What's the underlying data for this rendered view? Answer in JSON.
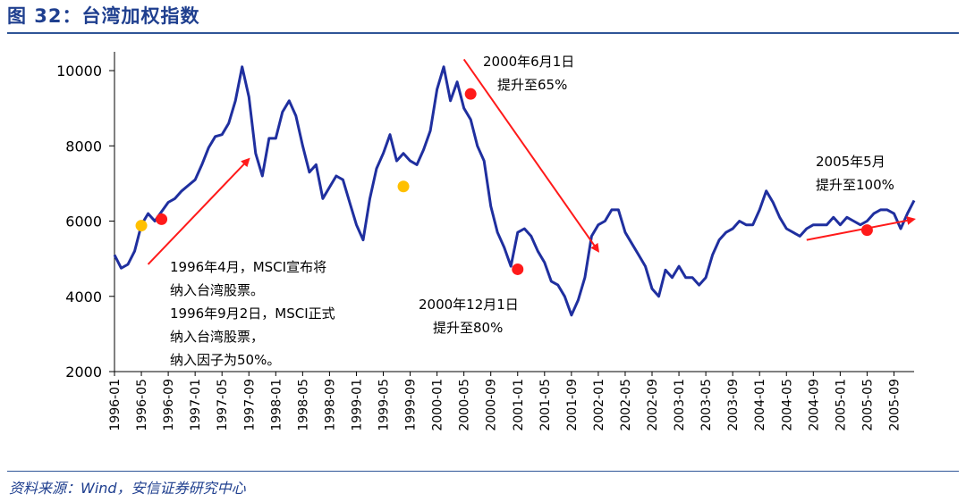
{
  "header": {
    "title": "图 32：台湾加权指数"
  },
  "footer": {
    "source": "资料来源：Wind，安信证券研究中心"
  },
  "colors": {
    "series": "#1f2f9f",
    "arrow": "#ff1a1a",
    "marker_red": "#ff1a1a",
    "marker_yellow": "#ffc000",
    "accent": "#2f5597"
  },
  "chart_data": {
    "type": "line",
    "title": "",
    "xlabel": "",
    "ylabel": "",
    "x_range": [
      "1996-01",
      "2005-12"
    ],
    "ylim": [
      2000,
      10500
    ],
    "yticks": [
      2000,
      4000,
      6000,
      8000,
      10000
    ],
    "xticks": [
      "1996-01",
      "1996-05",
      "1996-09",
      "1997-01",
      "1997-05",
      "1997-09",
      "1998-01",
      "1998-05",
      "1998-09",
      "1999-01",
      "1999-05",
      "1999-09",
      "2000-01",
      "2000-05",
      "2000-09",
      "2001-01",
      "2001-05",
      "2001-09",
      "2002-01",
      "2002-05",
      "2002-09",
      "2003-01",
      "2003-05",
      "2003-09",
      "2004-01",
      "2004-05",
      "2004-09",
      "2005-01",
      "2005-05",
      "2005-09"
    ],
    "grid": false,
    "legend": "none",
    "series": [
      {
        "points": [
          [
            "1996-01",
            5100
          ],
          [
            "1996-02",
            4750
          ],
          [
            "1996-03",
            4850
          ],
          [
            "1996-04",
            5200
          ],
          [
            "1996-05",
            5900
          ],
          [
            "1996-06",
            6200
          ],
          [
            "1996-07",
            6000
          ],
          [
            "1996-08",
            6250
          ],
          [
            "1996-09",
            6500
          ],
          [
            "1996-10",
            6600
          ],
          [
            "1996-11",
            6800
          ],
          [
            "1996-12",
            6950
          ],
          [
            "1997-01",
            7100
          ],
          [
            "1997-02",
            7500
          ],
          [
            "1997-03",
            7950
          ],
          [
            "1997-04",
            8250
          ],
          [
            "1997-05",
            8300
          ],
          [
            "1997-06",
            8600
          ],
          [
            "1997-07",
            9200
          ],
          [
            "1997-08",
            10100
          ],
          [
            "1997-09",
            9300
          ],
          [
            "1997-10",
            7800
          ],
          [
            "1997-11",
            7200
          ],
          [
            "1997-12",
            8200
          ],
          [
            "1998-01",
            8200
          ],
          [
            "1998-02",
            8900
          ],
          [
            "1998-03",
            9200
          ],
          [
            "1998-04",
            8800
          ],
          [
            "1998-05",
            8000
          ],
          [
            "1998-06",
            7300
          ],
          [
            "1998-07",
            7500
          ],
          [
            "1998-08",
            6600
          ],
          [
            "1998-09",
            6900
          ],
          [
            "1998-10",
            7200
          ],
          [
            "1998-11",
            7100
          ],
          [
            "1998-12",
            6500
          ],
          [
            "1999-01",
            5900
          ],
          [
            "1999-02",
            5500
          ],
          [
            "1999-03",
            6600
          ],
          [
            "1999-04",
            7400
          ],
          [
            "1999-05",
            7800
          ],
          [
            "1999-06",
            8300
          ],
          [
            "1999-07",
            7600
          ],
          [
            "1999-08",
            7800
          ],
          [
            "1999-09",
            7600
          ],
          [
            "1999-10",
            7500
          ],
          [
            "1999-11",
            7900
          ],
          [
            "1999-12",
            8400
          ],
          [
            "2000-01",
            9500
          ],
          [
            "2000-02",
            10100
          ],
          [
            "2000-03",
            9200
          ],
          [
            "2000-04",
            9700
          ],
          [
            "2000-05",
            9000
          ],
          [
            "2000-06",
            8700
          ],
          [
            "2000-07",
            8000
          ],
          [
            "2000-08",
            7600
          ],
          [
            "2000-09",
            6400
          ],
          [
            "2000-10",
            5700
          ],
          [
            "2000-11",
            5300
          ],
          [
            "2000-12",
            4800
          ],
          [
            "2001-01",
            5700
          ],
          [
            "2001-02",
            5800
          ],
          [
            "2001-03",
            5600
          ],
          [
            "2001-04",
            5200
          ],
          [
            "2001-05",
            4900
          ],
          [
            "2001-06",
            4400
          ],
          [
            "2001-07",
            4300
          ],
          [
            "2001-08",
            4000
          ],
          [
            "2001-09",
            3500
          ],
          [
            "2001-10",
            3900
          ],
          [
            "2001-11",
            4500
          ],
          [
            "2001-12",
            5600
          ],
          [
            "2002-01",
            5900
          ],
          [
            "2002-02",
            6000
          ],
          [
            "2002-03",
            6300
          ],
          [
            "2002-04",
            6300
          ],
          [
            "2002-05",
            5700
          ],
          [
            "2002-06",
            5400
          ],
          [
            "2002-07",
            5100
          ],
          [
            "2002-08",
            4800
          ],
          [
            "2002-09",
            4200
          ],
          [
            "2002-10",
            4000
          ],
          [
            "2002-11",
            4700
          ],
          [
            "2002-12",
            4500
          ],
          [
            "2003-01",
            4800
          ],
          [
            "2003-02",
            4500
          ],
          [
            "2003-03",
            4500
          ],
          [
            "2003-04",
            4300
          ],
          [
            "2003-05",
            4500
          ],
          [
            "2003-06",
            5100
          ],
          [
            "2003-07",
            5500
          ],
          [
            "2003-08",
            5700
          ],
          [
            "2003-09",
            5800
          ],
          [
            "2003-10",
            6000
          ],
          [
            "2003-11",
            5900
          ],
          [
            "2003-12",
            5900
          ],
          [
            "2004-01",
            6300
          ],
          [
            "2004-02",
            6800
          ],
          [
            "2004-03",
            6500
          ],
          [
            "2004-04",
            6100
          ],
          [
            "2004-05",
            5800
          ],
          [
            "2004-06",
            5700
          ],
          [
            "2004-07",
            5600
          ],
          [
            "2004-08",
            5800
          ],
          [
            "2004-09",
            5900
          ],
          [
            "2004-10",
            5900
          ],
          [
            "2004-11",
            5900
          ],
          [
            "2004-12",
            6100
          ],
          [
            "2005-01",
            5900
          ],
          [
            "2005-02",
            6100
          ],
          [
            "2005-03",
            6000
          ],
          [
            "2005-04",
            5900
          ],
          [
            "2005-05",
            6000
          ],
          [
            "2005-06",
            6200
          ],
          [
            "2005-07",
            6300
          ],
          [
            "2005-08",
            6300
          ],
          [
            "2005-09",
            6200
          ],
          [
            "2005-10",
            5800
          ],
          [
            "2005-11",
            6200
          ],
          [
            "2005-12",
            6550
          ]
        ]
      }
    ],
    "markers": [
      {
        "x": "1996-05",
        "y": 5880,
        "color": "#ffc000"
      },
      {
        "x": "1996-08",
        "y": 6050,
        "color": "#ff1a1a"
      },
      {
        "x": "1999-08",
        "y": 6920,
        "color": "#ffc000"
      },
      {
        "x": "2000-06",
        "y": 9380,
        "color": "#ff1a1a"
      },
      {
        "x": "2001-01",
        "y": 4720,
        "color": "#ff1a1a"
      },
      {
        "x": "2005-05",
        "y": 5760,
        "color": "#ff1a1a"
      }
    ],
    "arrows": [
      {
        "from": [
          "1996-06",
          4850
        ],
        "to": [
          "1997-09",
          7650
        ]
      },
      {
        "from": [
          "2000-05",
          10300
        ],
        "to": [
          "2002-01",
          5200
        ]
      },
      {
        "from": [
          "2004-08",
          5500
        ],
        "to": [
          "2005-12",
          6050
        ]
      }
    ],
    "annotations": [
      {
        "lines": [
          "1996年4月，MSCI宣布将",
          "纳入台湾股票。",
          "1996年9月2日，MSCI正式",
          "纳入台湾股票，",
          "纳入因子为50%。"
        ]
      },
      {
        "lines": [
          "2000年6月1日",
          "提升至65%"
        ]
      },
      {
        "lines": [
          "2000年12月1日",
          "提升至80%"
        ]
      },
      {
        "lines": [
          "2005年5月",
          "提升至100%"
        ]
      }
    ]
  }
}
